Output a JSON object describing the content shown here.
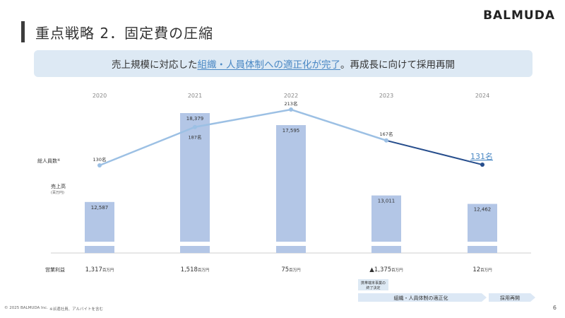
{
  "brand": "BALMUDA",
  "header": {
    "title": "重点戦略 2．固定費の圧縮"
  },
  "banner": {
    "pre": "売上規模に対応した",
    "highlight": "組織・人員体制への適正化が完了",
    "post": "。再成長に向けて採用再開"
  },
  "labels": {
    "headcount": "総人員数",
    "headcount_mark": "※",
    "sales": "売上高",
    "sales_unit": "(百万円)",
    "op_income": "営業利益"
  },
  "chart_data": {
    "type": "bar",
    "categories": [
      "2020",
      "2021",
      "2022",
      "2023",
      "2024"
    ],
    "sales": [
      12587,
      18379,
      17595,
      13011,
      12462
    ],
    "sales_labels": [
      "12,587",
      "18,379",
      "17,595",
      "13,011",
      "12,462"
    ],
    "headcount": [
      130,
      187,
      213,
      167,
      131
    ],
    "headcount_labels": [
      "130名",
      "187名",
      "213名",
      "167名",
      "131名"
    ],
    "op_income_labels": [
      "1,317",
      "1,518",
      "75",
      "▲1,375",
      "12"
    ],
    "op_income_unit": "百万円",
    "axis_break": true
  },
  "notes": {
    "exit_note_line1": "携帯端末事業の",
    "exit_note_line2": "終了決定",
    "phase1": "組織・人員体制の適正化",
    "phase2": "採用再開"
  },
  "colors": {
    "bar": "#b3c6e6",
    "line_light": "#9cc0e4",
    "line_dark": "#264d8c",
    "accent": "#4a88c4",
    "banner_bg": "#dde9f4",
    "arrow_bg": "#dce8f5"
  },
  "footer": {
    "copyright": "© 2025 BALMUDA Inc.",
    "note": "※派遣社員、アルバイトを含む",
    "page": "6"
  }
}
